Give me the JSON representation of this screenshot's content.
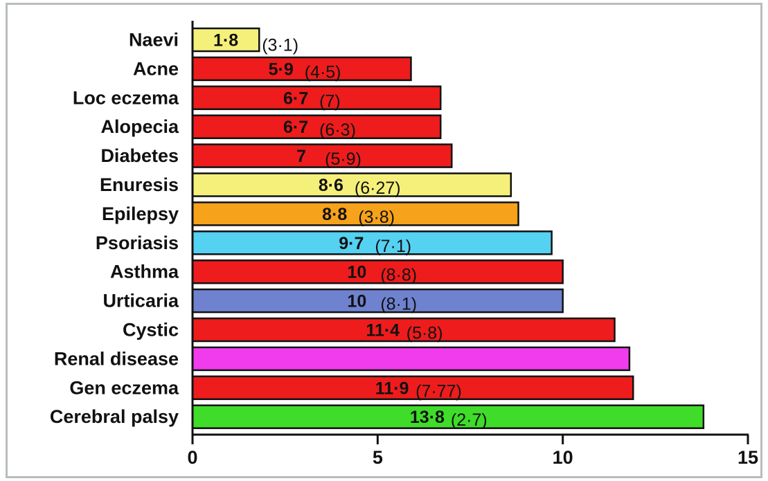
{
  "chart_data": {
    "type": "bar",
    "orientation": "horizontal",
    "title": "",
    "xlabel": "",
    "ylabel": "",
    "xlim": [
      0,
      15
    ],
    "xticks": [
      "0",
      "5",
      "10",
      "15"
    ],
    "grid": false,
    "categories": [
      "Naevi",
      "Acne",
      "Loc eczema",
      "Alopecia",
      "Diabetes",
      "Enuresis",
      "Epilepsy",
      "Psoriasis",
      "Asthma",
      "Urticaria",
      "Cystic",
      "Renal disease",
      "Gen eczema",
      "Cerebral palsy"
    ],
    "values": [
      1.8,
      5.9,
      6.7,
      6.7,
      7,
      8.6,
      8.8,
      9.7,
      10,
      10,
      11.4,
      11.8,
      11.9,
      13.8
    ],
    "value_labels": [
      "1·8",
      "5·9",
      "6·7",
      "6·7",
      "7",
      "8·6",
      "8·8",
      "9·7",
      "10",
      "10",
      "11·4",
      "",
      "11·9",
      "13·8"
    ],
    "sd_labels": [
      "(3·1)",
      "(4·5)",
      "(7)",
      "(6·3)",
      "(5·9)",
      "(6·27)",
      "(3·8)",
      "(7·1)",
      "(8·8)",
      "(8·1)",
      "(5·8)",
      "",
      "(7·77)",
      "(2·7)"
    ],
    "colors": [
      "#f5f07a",
      "#ee1c1c",
      "#ee1c1c",
      "#ee1c1c",
      "#ee1c1c",
      "#f5f07a",
      "#f7a21b",
      "#55d2f2",
      "#ee1c1c",
      "#6f82cf",
      "#ee1c1c",
      "#f03ced",
      "#ee1c1c",
      "#3fdc2a"
    ]
  }
}
